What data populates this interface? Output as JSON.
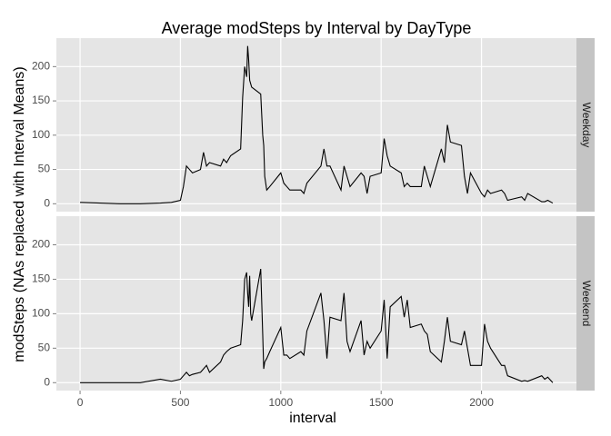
{
  "chart_data": {
    "type": "line",
    "title": "Average modSteps by Interval by DayType",
    "xlabel": "interval",
    "ylabel": "modSteps (NAs replaced with Interval Means)",
    "x": [
      0,
      100,
      200,
      300,
      400,
      455,
      500,
      515,
      530,
      545,
      560,
      600,
      615,
      630,
      645,
      700,
      715,
      730,
      750,
      800,
      810,
      820,
      830,
      835,
      840,
      845,
      850,
      855,
      900,
      910,
      915,
      920,
      930,
      945,
      1000,
      1015,
      1030,
      1045,
      1100,
      1115,
      1130,
      1200,
      1215,
      1230,
      1245,
      1300,
      1315,
      1330,
      1345,
      1400,
      1415,
      1430,
      1445,
      1500,
      1515,
      1530,
      1545,
      1600,
      1615,
      1630,
      1645,
      1700,
      1715,
      1730,
      1745,
      1800,
      1815,
      1830,
      1845,
      1900,
      1915,
      1930,
      1945,
      2000,
      2015,
      2030,
      2045,
      2100,
      2115,
      2130,
      2200,
      2215,
      2230,
      2300,
      2315,
      2330,
      2355
    ],
    "series": [
      {
        "name": "Weekday",
        "color": "#000000",
        "values": [
          2,
          1,
          0,
          0,
          1,
          2,
          5,
          25,
          55,
          50,
          45,
          50,
          75,
          55,
          60,
          55,
          65,
          60,
          70,
          80,
          155,
          200,
          185,
          230,
          210,
          180,
          175,
          170,
          160,
          100,
          85,
          40,
          20,
          25,
          45,
          30,
          25,
          20,
          20,
          15,
          30,
          55,
          80,
          55,
          55,
          20,
          55,
          40,
          25,
          45,
          40,
          15,
          40,
          45,
          95,
          70,
          55,
          45,
          25,
          30,
          25,
          25,
          55,
          40,
          25,
          80,
          60,
          115,
          90,
          85,
          40,
          15,
          45,
          15,
          10,
          20,
          15,
          20,
          15,
          5,
          10,
          5,
          15,
          3,
          3,
          5,
          1
        ]
      },
      {
        "name": "Weekend",
        "color": "#000000",
        "values": [
          0,
          0,
          0,
          0,
          5,
          2,
          5,
          10,
          15,
          10,
          12,
          15,
          20,
          25,
          15,
          30,
          40,
          45,
          50,
          55,
          90,
          150,
          160,
          130,
          110,
          155,
          100,
          90,
          165,
          70,
          20,
          30,
          35,
          45,
          80,
          40,
          40,
          35,
          45,
          40,
          75,
          130,
          90,
          35,
          95,
          90,
          130,
          60,
          45,
          90,
          40,
          60,
          50,
          75,
          120,
          35,
          110,
          125,
          95,
          120,
          80,
          85,
          75,
          70,
          45,
          30,
          60,
          95,
          60,
          55,
          75,
          50,
          25,
          25,
          85,
          60,
          50,
          25,
          25,
          10,
          2,
          3,
          2,
          10,
          5,
          8,
          0
        ]
      }
    ],
    "xlim": [
      -118,
      2473
    ],
    "ylim": [
      -11.5,
      241.5
    ],
    "xticks": [
      0,
      500,
      1000,
      1500,
      2000
    ],
    "yticks": [
      0,
      50,
      100,
      150,
      200
    ],
    "grid": true
  }
}
